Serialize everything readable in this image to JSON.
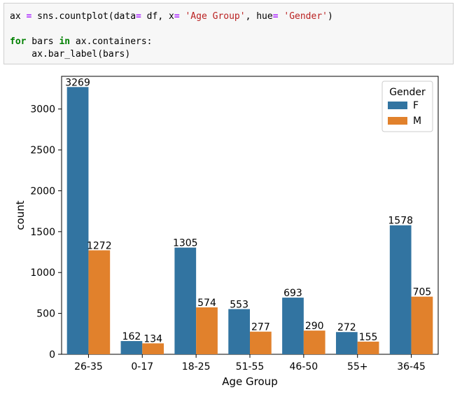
{
  "code": {
    "line1": {
      "a": "ax ",
      "b": "=",
      "c": " sns.countplot(data",
      "d": "=",
      "e": " df, x",
      "f": "=",
      "g": " ",
      "h": "'Age Group'",
      "i": ", hue",
      "j": "=",
      "k": " ",
      "l": "'Gender'",
      "m": ")"
    },
    "line2": {
      "kw_for": "for",
      "a": " bars ",
      "kw_in": "in",
      "b": " ax.containers:"
    },
    "line3": "    ax.bar_label(bars)"
  },
  "colors": {
    "F": "#3274a1",
    "M": "#e1812c"
  },
  "chart_data": {
    "type": "bar",
    "categories": [
      "26-35",
      "0-17",
      "18-25",
      "51-55",
      "46-50",
      "55+",
      "36-45"
    ],
    "series": [
      {
        "name": "F",
        "values": [
          3269,
          162,
          1305,
          553,
          693,
          272,
          1578
        ]
      },
      {
        "name": "M",
        "values": [
          1272,
          134,
          574,
          277,
          290,
          155,
          705
        ]
      }
    ],
    "xlabel": "Age Group",
    "ylabel": "count",
    "ylim": [
      0,
      3400
    ],
    "yticks": [
      0,
      500,
      1000,
      1500,
      2000,
      2500,
      3000
    ],
    "legend": {
      "title": "Gender",
      "placement": "top-right"
    },
    "grid": false
  }
}
